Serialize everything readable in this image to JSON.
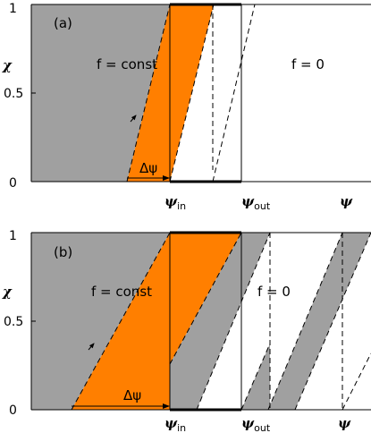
{
  "colors": {
    "grey_region": "#a0a0a0",
    "orange_region": "#ff7f00",
    "line": "#000000",
    "background": "#ffffff"
  },
  "axis": {
    "y_label": "χ",
    "y_ticks": [
      "0",
      "0.5",
      "1"
    ],
    "x_symbol": "ψ",
    "x_sub_in": "in",
    "x_sub_out": "out"
  },
  "panel_a": {
    "tag": "(a)",
    "region_left_label": "f = const",
    "region_right_label": "f = 0",
    "shift_label": "Δψ"
  },
  "panel_b": {
    "tag": "(b)",
    "region_left_label": "f = const",
    "region_right_label": "f = 0",
    "shift_label": "Δψ"
  }
}
